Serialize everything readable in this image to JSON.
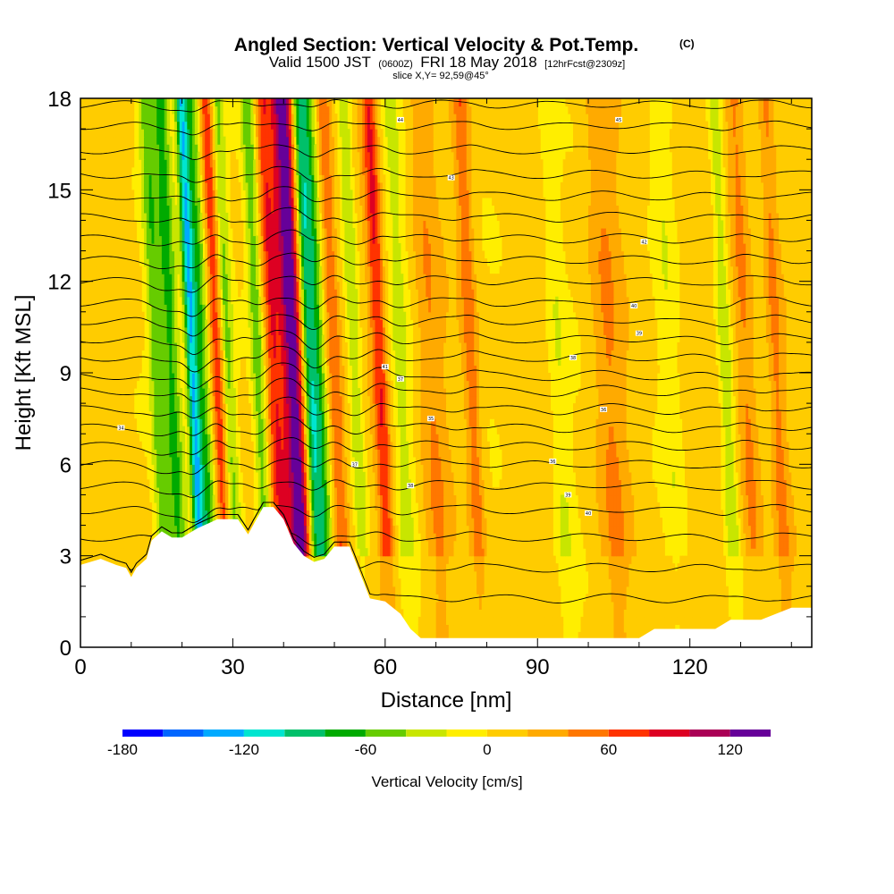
{
  "figure": {
    "title_main": "Angled Section: Vertical Velocity & Pot.Temp.",
    "title_unit": "(C)",
    "valid_prefix": "Valid 1500 JST",
    "valid_z": "(0600Z)",
    "valid_date": "FRI 18 May 2018",
    "valid_fcst": "[12hrFcst@2309z]",
    "slice": "slice X,Y= 92,59@45°"
  },
  "colors": {
    "terrain": "#ffffff",
    "contour": "#000000",
    "frame": "#000000"
  },
  "chart_data": {
    "type": "heatmap",
    "title": "Angled Section: Vertical Velocity & Pot.Temp.",
    "xlabel": "Distance [nm]",
    "ylabel": "Height [Kft MSL]",
    "xlim": [
      0,
      144
    ],
    "ylim": [
      0,
      18
    ],
    "x_ticks": [
      0,
      30,
      60,
      90,
      120
    ],
    "x_tick_labels": [
      "0",
      "30",
      "60",
      "90",
      "120"
    ],
    "y_ticks": [
      0,
      3,
      6,
      9,
      12,
      15,
      18
    ],
    "y_tick_labels": [
      "0",
      "3",
      "6",
      "9",
      "12",
      "15",
      "18"
    ],
    "colorbar": {
      "label": "Vertical Velocity [cm/s]",
      "bounds": [
        -180,
        -160,
        -140,
        -120,
        -100,
        -80,
        -60,
        -40,
        -20,
        0,
        20,
        40,
        60,
        80,
        100,
        120,
        140
      ],
      "tick_values": [
        -180,
        -120,
        -60,
        0,
        60,
        120
      ],
      "tick_labels": [
        "-180",
        "-120",
        "-60",
        "0",
        "60",
        "120"
      ],
      "colors": [
        "#0000ff",
        "#0066ff",
        "#00aaff",
        "#00e5d0",
        "#00c06a",
        "#00aa00",
        "#66cc00",
        "#c8e600",
        "#ffee00",
        "#ffcc00",
        "#ffaa00",
        "#ff7700",
        "#ff3300",
        "#dd0022",
        "#aa0055",
        "#660099"
      ],
      "legend_position": "bottom"
    },
    "velocity_bands": [
      {
        "x": 15,
        "value": -55,
        "width": 1.5
      },
      {
        "x": 18,
        "value": -75,
        "width": 1.8
      },
      {
        "x": 22,
        "value": -125,
        "width": 1.2
      },
      {
        "x": 24,
        "value": -70,
        "width": 1.5
      },
      {
        "x": 27,
        "value": 70,
        "width": 1.3
      },
      {
        "x": 29,
        "value": -50,
        "width": 1.3
      },
      {
        "x": 35,
        "value": -60,
        "width": 1.4
      },
      {
        "x": 38,
        "value": 60,
        "width": 1.5
      },
      {
        "x": 42,
        "value": 130,
        "width": 2.4
      },
      {
        "x": 45,
        "value": -110,
        "width": 1.5
      },
      {
        "x": 47,
        "value": -60,
        "width": 1.4
      },
      {
        "x": 50,
        "value": 50,
        "width": 1.5
      },
      {
        "x": 54,
        "value": -45,
        "width": 1.5
      },
      {
        "x": 59,
        "value": 70,
        "width": 1.5
      },
      {
        "x": 63,
        "value": -30,
        "width": 2.0
      },
      {
        "x": 69,
        "value": 30,
        "width": 2.5
      },
      {
        "x": 77,
        "value": 45,
        "width": 1.5
      },
      {
        "x": 94,
        "value": -25,
        "width": 2.0
      },
      {
        "x": 104,
        "value": 30,
        "width": 3.0
      },
      {
        "x": 116,
        "value": -20,
        "width": 2.0
      },
      {
        "x": 127,
        "value": -40,
        "width": 1.5
      },
      {
        "x": 131,
        "value": 40,
        "width": 2.0
      },
      {
        "x": 137,
        "value": 35,
        "width": 1.5
      }
    ],
    "terrain_profile": {
      "x": [
        0,
        4,
        7,
        9,
        10,
        11,
        13,
        14,
        16,
        18,
        20,
        23,
        27,
        31,
        33,
        36,
        38,
        40,
        42,
        44,
        46,
        48,
        50,
        53,
        57,
        60,
        63,
        65,
        67,
        69,
        72,
        78,
        84,
        90,
        100,
        110,
        113,
        115,
        125,
        128,
        134,
        140,
        144
      ],
      "y": [
        2.7,
        2.9,
        2.7,
        2.6,
        2.3,
        2.6,
        2.9,
        3.5,
        3.8,
        3.6,
        3.6,
        3.9,
        4.2,
        4.2,
        3.7,
        4.6,
        4.6,
        4.2,
        3.4,
        3.0,
        2.8,
        2.9,
        3.3,
        3.3,
        1.6,
        1.5,
        1.1,
        0.6,
        0.3,
        0.3,
        0.3,
        0.3,
        0.3,
        0.3,
        0.3,
        0.3,
        0.6,
        0.6,
        0.6,
        0.9,
        0.9,
        1.3,
        1.3
      ]
    },
    "theta_contours": {
      "interval_c": 1,
      "start_heights_kft": [
        1.6,
        2.6,
        3.6,
        4.5,
        5.3,
        6.0,
        6.6,
        7.2,
        7.8,
        8.4,
        8.9,
        9.5,
        10.1,
        10.7,
        11.3,
        12.0,
        12.7,
        13.4,
        14.1,
        14.8,
        15.5,
        16.3,
        17.1,
        17.8
      ],
      "labels": [
        {
          "x": 8,
          "y": 7.2,
          "text": "34"
        },
        {
          "x": 54,
          "y": 6.0,
          "text": "37"
        },
        {
          "x": 65,
          "y": 5.3,
          "text": "38"
        },
        {
          "x": 96,
          "y": 5.0,
          "text": "39"
        },
        {
          "x": 100,
          "y": 4.4,
          "text": "40"
        },
        {
          "x": 93,
          "y": 6.1,
          "text": "36"
        },
        {
          "x": 69,
          "y": 7.5,
          "text": "35"
        },
        {
          "x": 103,
          "y": 7.8,
          "text": "36"
        },
        {
          "x": 63,
          "y": 8.8,
          "text": "37"
        },
        {
          "x": 97,
          "y": 9.5,
          "text": "38"
        },
        {
          "x": 110,
          "y": 10.3,
          "text": "39"
        },
        {
          "x": 109,
          "y": 11.2,
          "text": "40"
        },
        {
          "x": 60,
          "y": 9.2,
          "text": "41"
        },
        {
          "x": 111,
          "y": 13.3,
          "text": "42"
        },
        {
          "x": 73,
          "y": 15.4,
          "text": "43"
        },
        {
          "x": 63,
          "y": 17.3,
          "text": "44"
        },
        {
          "x": 106,
          "y": 17.3,
          "text": "45"
        }
      ]
    }
  }
}
